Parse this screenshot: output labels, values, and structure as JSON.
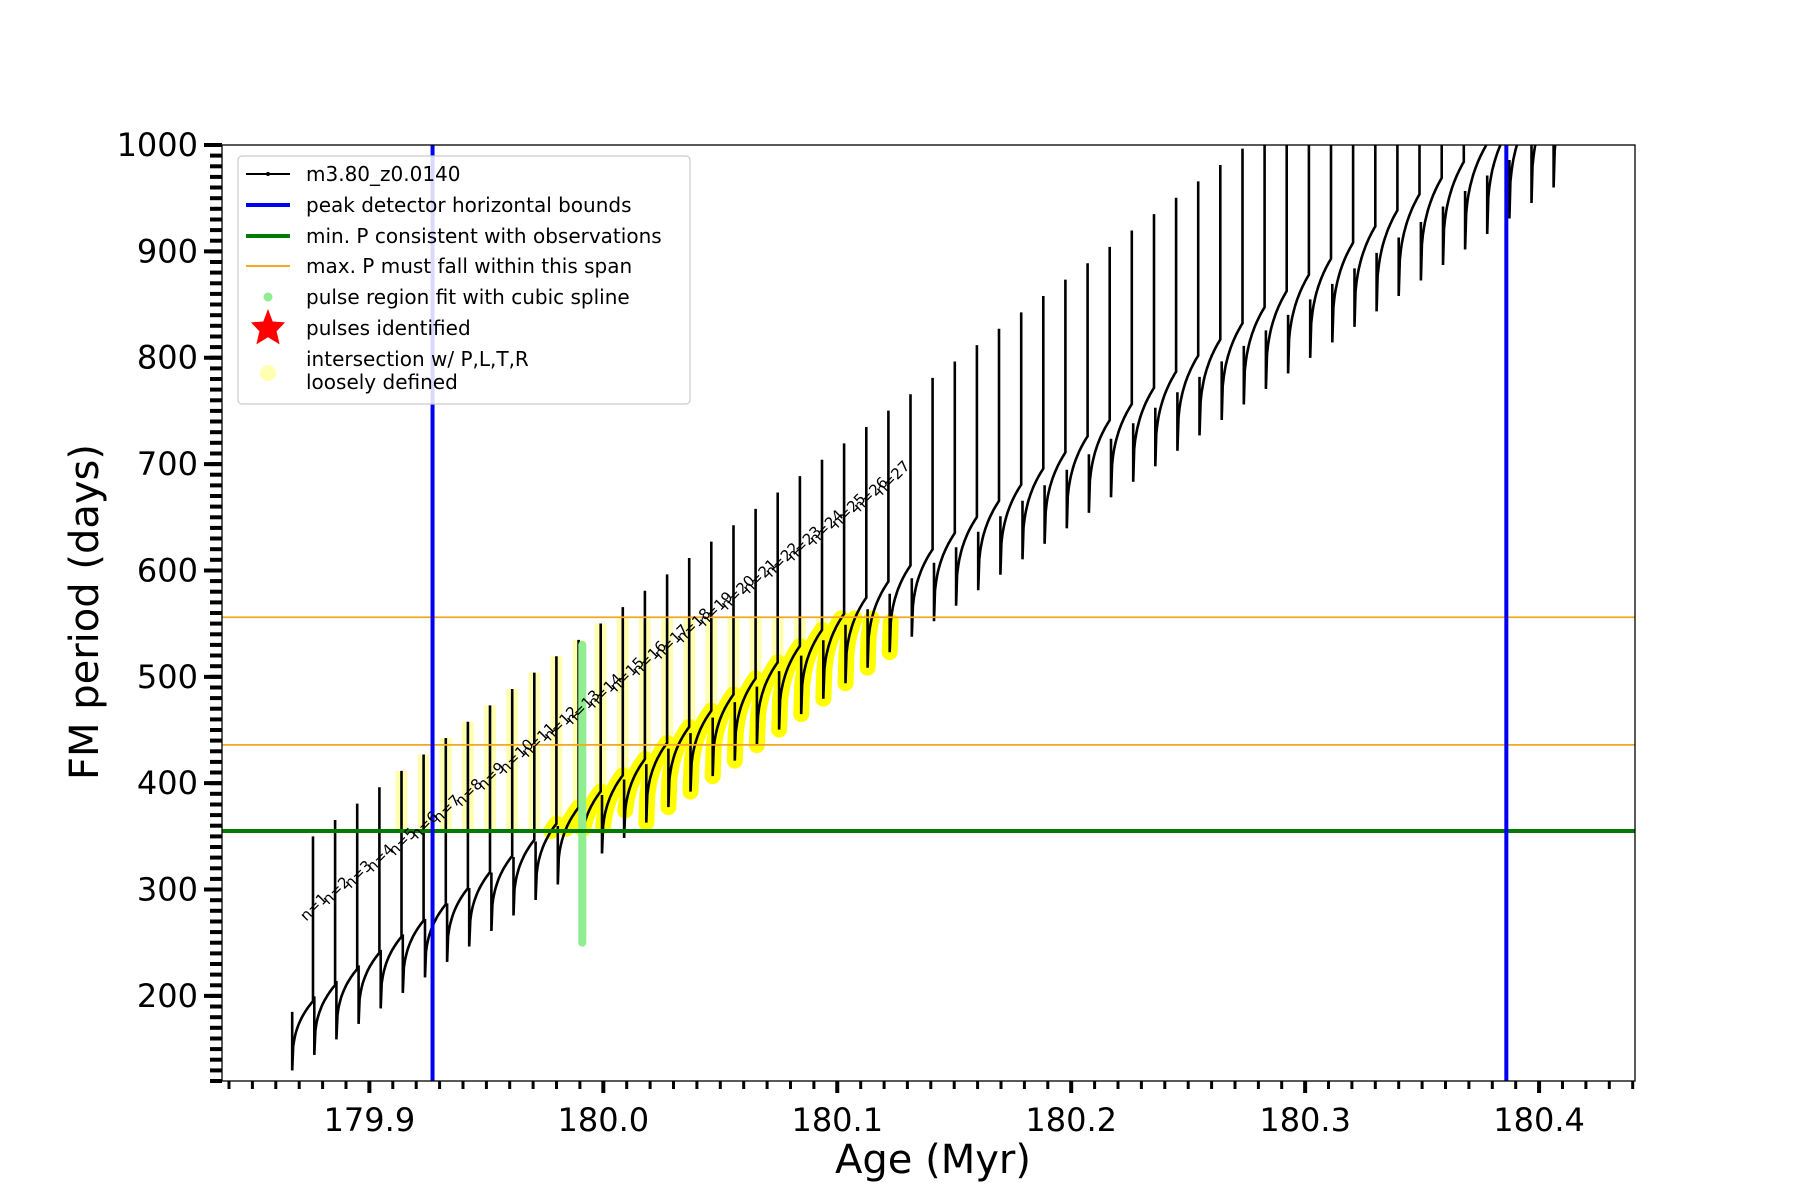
{
  "chart_data": {
    "type": "line",
    "xlabel": "Age (Myr)",
    "ylabel": "FM period (days)",
    "xlim": [
      179.837,
      180.441
    ],
    "ylim": [
      120,
      1000
    ],
    "x_ticks": [
      179.9,
      180.0,
      180.1,
      180.2,
      180.3,
      180.4
    ],
    "x_tick_labels": [
      "179.9",
      "180.0",
      "180.1",
      "180.2",
      "180.3",
      "180.4"
    ],
    "x_minor_step": 0.01,
    "y_ticks": [
      200,
      300,
      400,
      500,
      600,
      700,
      800,
      900,
      1000
    ],
    "y_tick_labels": [
      "200",
      "300",
      "400",
      "500",
      "600",
      "700",
      "800",
      "900",
      "1000"
    ],
    "y_minor_step": 10,
    "track": {
      "name": "m3.80_z0.0140",
      "color": "#000000",
      "n_pulses": 58,
      "x_start": 179.867,
      "pulse_spacing": 0.00946,
      "base_start": 130,
      "base_end": 960,
      "peak_start": 350,
      "peak_end": 1000,
      "period_cap": 1000
    },
    "vertical_lines": {
      "label": "peak detector horizontal bounds",
      "color": "#0000ee",
      "x": [
        179.927,
        180.386
      ]
    },
    "min_period_line": {
      "label": "min. P consistent with observations",
      "color": "#007a00",
      "y": 355
    },
    "max_period_span": {
      "label": "max. P must fall within this span",
      "color": "#f5a623",
      "y": [
        436,
        556
      ]
    },
    "spline_region": {
      "label": "pulse region fit with cubic spline",
      "color": "#90ee90",
      "x": 179.991,
      "y_range": [
        250,
        530
      ]
    },
    "pulses_identified": {
      "label": "pulses identified",
      "color": "#ff0000"
    },
    "intersection": {
      "label_line1": "intersection w/ P,L,T,R",
      "label_line2": "loosely defined",
      "color": "#ffff00"
    },
    "pulse_labels": [
      "n=1",
      "n=2",
      "n=3",
      "n=4",
      "n=5",
      "n=6",
      "n=7",
      "n=8",
      "n=9",
      "n=10",
      "n=11",
      "n=12",
      "n=13",
      "n=14",
      "n=15",
      "n=16",
      "n=17",
      "n=18",
      "n=19",
      "n=20",
      "n=21",
      "n=22",
      "n=23",
      "n=24",
      "n=25",
      "n=26",
      "n=27"
    ]
  }
}
